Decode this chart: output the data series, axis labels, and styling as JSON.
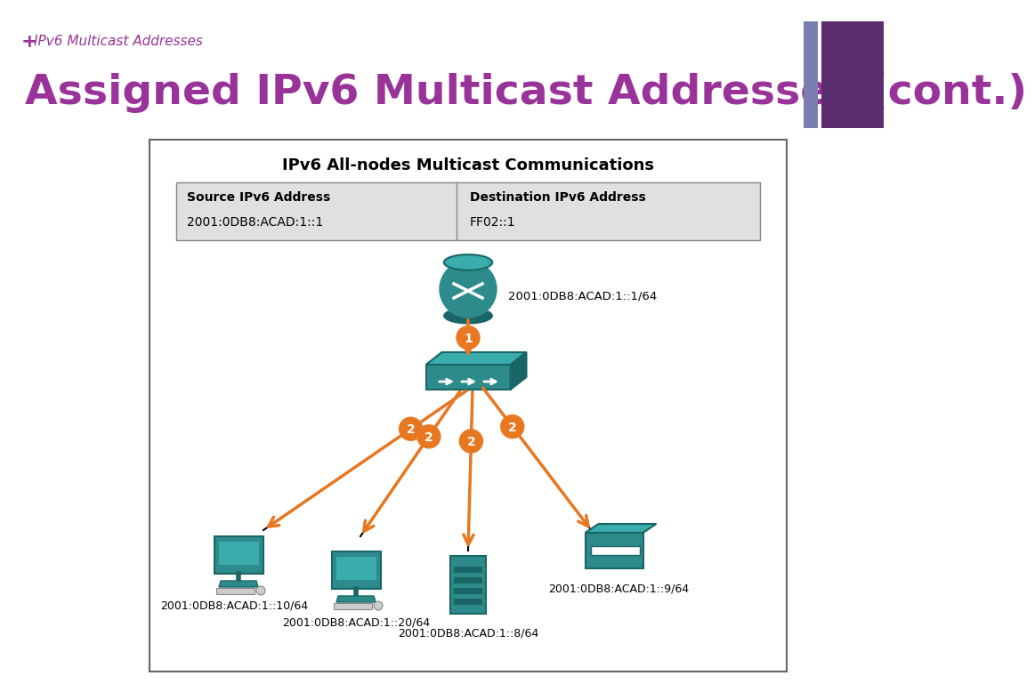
{
  "title_small": "IPv6 Multicast Addresses",
  "title_large": "Assigned IPv6 Multicast Addresses (cont.)",
  "title_small_color": "#993399",
  "title_large_color": "#993399",
  "diagram_title": "IPv6 All-nodes Multicast Communications",
  "source_label": "Source IPv6 Address",
  "source_addr": "2001:0DB8:ACAD:1::1",
  "dest_label": "Destination IPv6 Address",
  "dest_addr": "FF02::1",
  "router_addr": "2001:0DB8:ACAD:1::1/64",
  "node_addrs": {
    "left": "2001:0DB8:ACAD:1::10/64",
    "center_left": "2001:0DB8:ACAD:1::20/64",
    "center_right": "2001:0DB8:ACAD:1::8/64",
    "right": "2001:0DB8:ACAD:1::9/64"
  },
  "teal_color": "#2E8B8B",
  "teal_light": "#3AACAC",
  "teal_dark": "#1A6666",
  "orange_color": "#E87722",
  "box_bg": "#E0E0E0",
  "border_color": "#888888",
  "purple_bar1": "#7B7FAF",
  "purple_bar2": "#5C2D6E"
}
